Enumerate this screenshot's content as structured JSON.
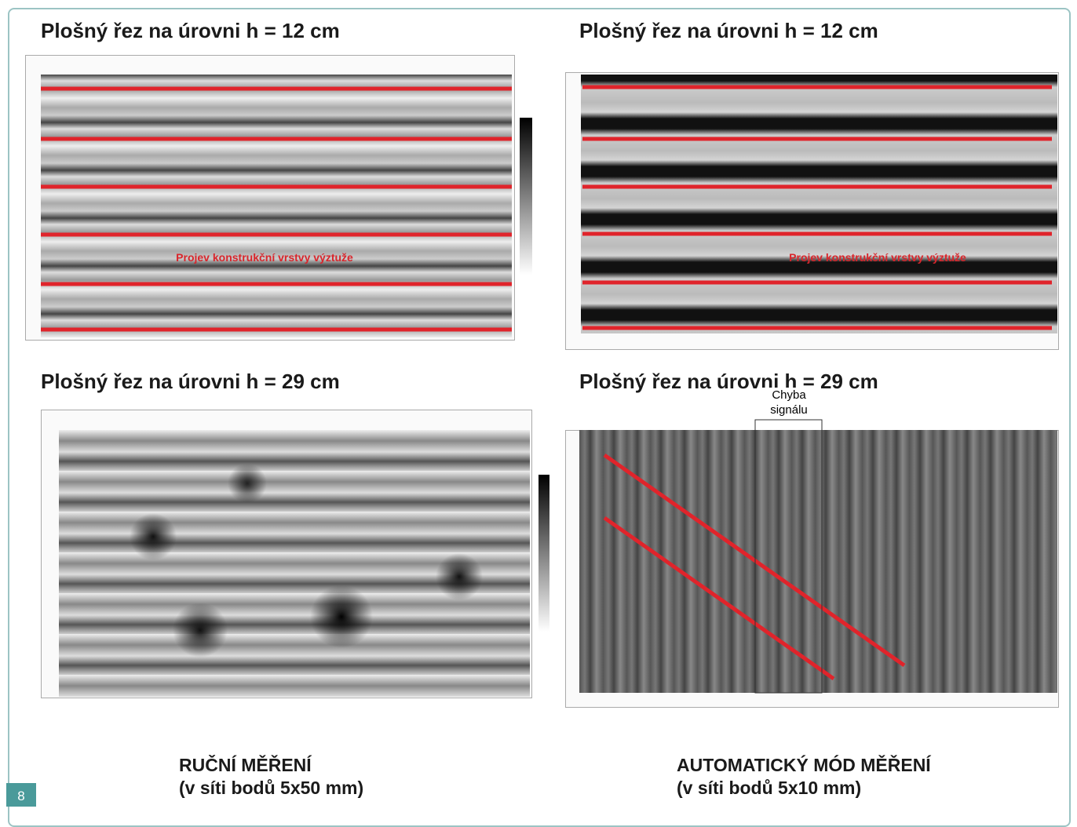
{
  "figure_number": "8",
  "panels": [
    {
      "title": "Plošný řez na úrovni h = 12 cm",
      "annotation": "Projev konstrukční vrstvy výztuže"
    },
    {
      "title": "Plošný řez na úrovni h = 12 cm",
      "annotation": "Projev konstrukční vrstvy výztuže"
    },
    {
      "title": "Plošný řez na úrovni h = 29 cm"
    },
    {
      "title": "Plošný řez na úrovni h = 29 cm",
      "signal_error": [
        "Chyba",
        "signálu"
      ]
    }
  ],
  "captions": [
    {
      "title": "RUČNÍ MĚŘENÍ",
      "subtitle": "(v síti bodů 5x50 mm)"
    },
    {
      "title": "AUTOMATICKÝ MÓD MĚŘENÍ",
      "subtitle": "(v síti bodů 5x10 mm)"
    }
  ]
}
